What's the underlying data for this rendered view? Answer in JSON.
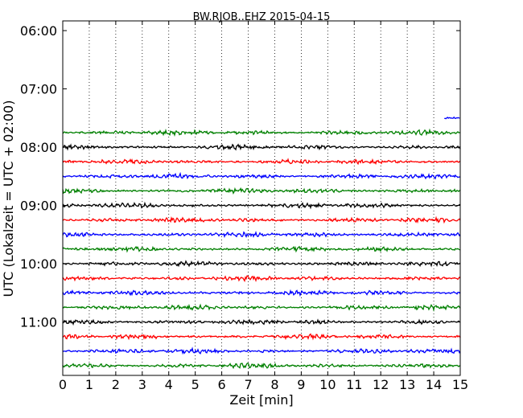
{
  "chart_data": {
    "type": "line",
    "title": "BW.RJOB..EHZ 2015-04-15",
    "xlabel": "Zeit  [min]",
    "ylabel": "UTC (Lokalzeit = UTC + 02:00)",
    "xlim": [
      0,
      15
    ],
    "x_ticks": [
      "0",
      "1",
      "2",
      "3",
      "4",
      "5",
      "6",
      "7",
      "8",
      "9",
      "10",
      "11",
      "12",
      "13",
      "14",
      "15"
    ],
    "y_ticks": [
      "06:00",
      "07:00",
      "08:00",
      "09:00",
      "10:00",
      "11:00"
    ],
    "y_range": [
      "05:50",
      "11:55"
    ],
    "grid": "vertical dotted",
    "trace_colors": [
      "#008000",
      "#000000",
      "#ff0000",
      "#0000ff"
    ],
    "traces": [
      {
        "time": "07:30",
        "start_min": 14.4,
        "end_min": 15,
        "color": "#0000ff"
      },
      {
        "time": "07:45",
        "start_min": 0,
        "end_min": 15,
        "color": "#008000"
      },
      {
        "time": "08:00",
        "start_min": 0,
        "end_min": 15,
        "color": "#000000"
      },
      {
        "time": "08:15",
        "start_min": 0,
        "end_min": 15,
        "color": "#ff0000"
      },
      {
        "time": "08:30",
        "start_min": 0,
        "end_min": 15,
        "color": "#0000ff"
      },
      {
        "time": "08:45",
        "start_min": 0,
        "end_min": 15,
        "color": "#008000"
      },
      {
        "time": "09:00",
        "start_min": 0,
        "end_min": 15,
        "color": "#000000"
      },
      {
        "time": "09:15",
        "start_min": 0,
        "end_min": 15,
        "color": "#ff0000"
      },
      {
        "time": "09:30",
        "start_min": 0,
        "end_min": 15,
        "color": "#0000ff"
      },
      {
        "time": "09:45",
        "start_min": 0,
        "end_min": 15,
        "color": "#008000"
      },
      {
        "time": "10:00",
        "start_min": 0,
        "end_min": 15,
        "color": "#000000"
      },
      {
        "time": "10:15",
        "start_min": 0,
        "end_min": 15,
        "color": "#ff0000"
      },
      {
        "time": "10:30",
        "start_min": 0,
        "end_min": 15,
        "color": "#0000ff"
      },
      {
        "time": "10:45",
        "start_min": 0,
        "end_min": 15,
        "color": "#008000"
      },
      {
        "time": "11:00",
        "start_min": 0,
        "end_min": 15,
        "color": "#000000"
      },
      {
        "time": "11:15",
        "start_min": 0,
        "end_min": 15,
        "color": "#ff0000"
      },
      {
        "time": "11:30",
        "start_min": 0,
        "end_min": 15,
        "color": "#0000ff"
      },
      {
        "time": "11:45",
        "start_min": 0,
        "end_min": 15,
        "color": "#008000"
      }
    ]
  }
}
